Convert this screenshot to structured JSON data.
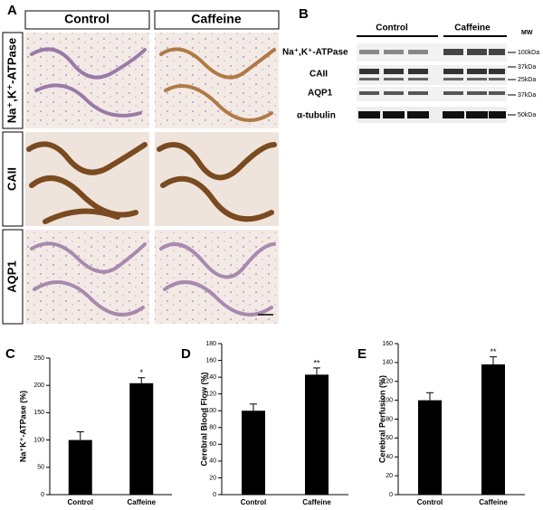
{
  "panel_a": {
    "label": "A",
    "columns": [
      "Control",
      "Caffeine"
    ],
    "rows": [
      "Na⁺,K⁺-ATPase",
      "CAII",
      "AQP1"
    ]
  },
  "panel_b": {
    "label": "B",
    "groups": [
      "Control",
      "Caffeine"
    ],
    "mw_header": "MW",
    "rows": [
      "Na⁺,K⁺-ATPase",
      "CAII",
      "AQP1",
      "α-tubulin"
    ],
    "markers": [
      "100kDa",
      "37kDa",
      "25kDa",
      "37kDa",
      "50kDa"
    ]
  },
  "chart_data": [
    {
      "type": "bar",
      "panel_label": "C",
      "y_label": "Na⁺K⁺-ATPase (%)",
      "categories": [
        "Control",
        "Caffeine"
      ],
      "values": [
        100,
        204
      ],
      "errors": [
        15,
        10
      ],
      "significance": [
        null,
        "*"
      ],
      "color": "#000000",
      "ylim": [
        0,
        250
      ],
      "yticks": [
        0,
        50,
        100,
        150,
        200,
        250
      ]
    },
    {
      "type": "bar",
      "panel_label": "D",
      "y_label": "Cerebral Blood Flow (%)",
      "categories": [
        "Control",
        "Caffeine"
      ],
      "values": [
        100,
        143
      ],
      "errors": [
        8,
        8
      ],
      "significance": [
        null,
        "**"
      ],
      "color": "#000000",
      "ylim": [
        0,
        180
      ],
      "yticks": [
        0,
        20,
        40,
        60,
        80,
        100,
        120,
        140,
        160,
        180
      ]
    },
    {
      "type": "bar",
      "panel_label": "E",
      "y_label": "Cerebral Perfusion (%)",
      "categories": [
        "Control",
        "Caffeine"
      ],
      "values": [
        100,
        138
      ],
      "errors": [
        8,
        8
      ],
      "significance": [
        null,
        "**"
      ],
      "color": "#000000",
      "ylim": [
        0,
        160
      ],
      "yticks": [
        0,
        20,
        40,
        60,
        80,
        100,
        120,
        140,
        160
      ]
    }
  ]
}
